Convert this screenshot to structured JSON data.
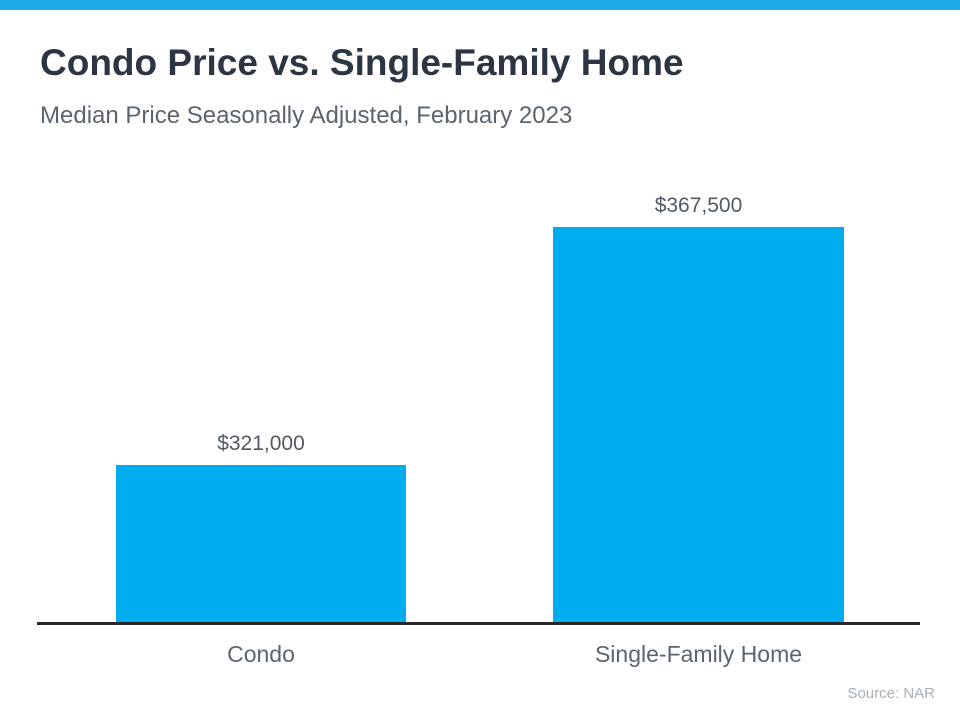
{
  "page": {
    "accent_bar_color": "#1da9e8",
    "background_color": "#ffffff"
  },
  "header": {
    "title": "Condo Price vs. Single-Family Home",
    "subtitle": "Median Price Seasonally Adjusted, February 2023"
  },
  "chart_data": {
    "type": "bar",
    "title": "Condo Price vs. Single-Family Home",
    "subtitle": "Median Price Seasonally Adjusted, February 2023",
    "categories": [
      "Condo",
      "Single-Family Home"
    ],
    "values": [
      321000,
      367500
    ],
    "value_labels": [
      "$321,000",
      "$367,500"
    ],
    "xlabel": "",
    "ylabel": "",
    "ylim": [
      290000,
      380000
    ],
    "y_axis_visible": false,
    "grid": false,
    "legend": false,
    "bar_color": "#00aeef",
    "axis_line_color": "#262626"
  },
  "footer": {
    "source_label": "Source: NAR"
  }
}
